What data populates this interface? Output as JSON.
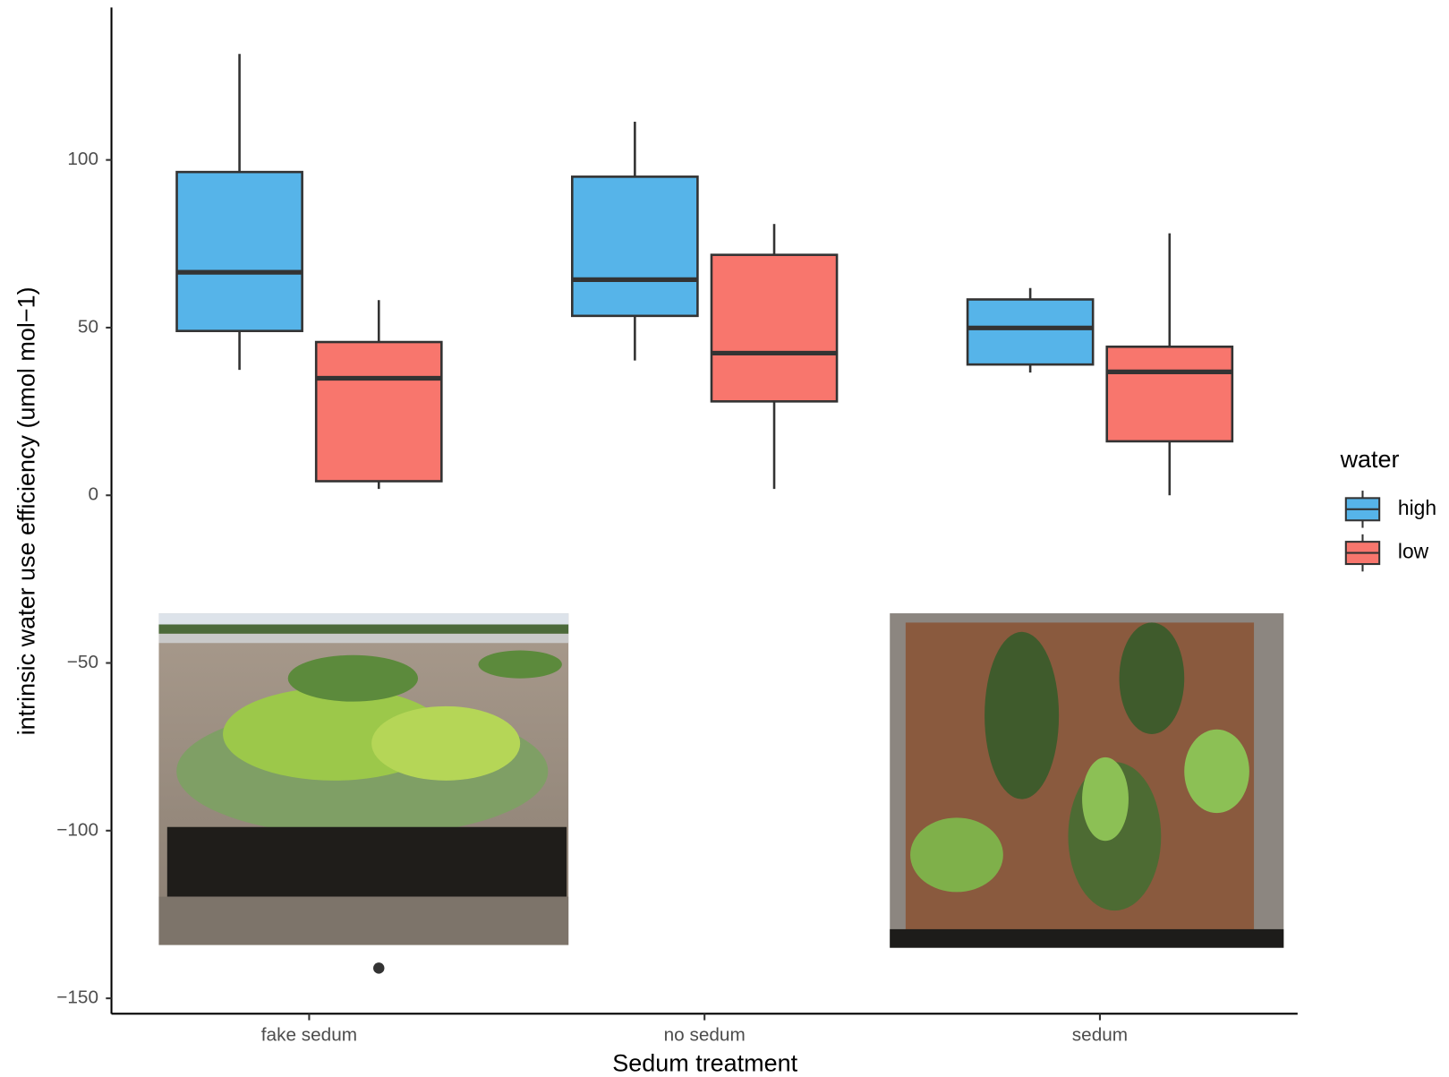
{
  "chart_data": {
    "type": "boxplot",
    "xlabel": "Sedum treatment",
    "ylabel": "intrinsic water use efficiency (umol mol−1)",
    "categories": [
      "fake sedum",
      "no sedum",
      "sedum"
    ],
    "legend_title": "water",
    "legend_position": "right",
    "ylim": [
      -154.6,
      144.9
    ],
    "yticks": [
      {
        "value": -150,
        "label": "−150"
      },
      {
        "value": -100,
        "label": "−100"
      },
      {
        "value": -50,
        "label": "−50"
      },
      0,
      50,
      100
    ],
    "series": [
      {
        "name": "high",
        "color": "#56b4e9",
        "whisker_low": [
          37.4,
          40.2,
          36.6
        ],
        "q1": [
          49,
          53.5,
          39
        ],
        "median": [
          66.5,
          64.3,
          49.9
        ],
        "q3": [
          96.4,
          95,
          58.4
        ],
        "whisker_high": [
          131.6,
          111.4,
          61.8
        ],
        "outliers": [
          [],
          [],
          []
        ]
      },
      {
        "name": "low",
        "color": "#f8766d",
        "whisker_low": [
          1.9,
          1.9,
          0
        ],
        "q1": [
          4.2,
          28,
          16.1
        ],
        "median": [
          34.9,
          42.4,
          36.8
        ],
        "q3": [
          45.7,
          71.7,
          44.3
        ],
        "whisker_high": [
          58.2,
          80.9,
          78.1
        ],
        "outliers": [
          [
            -141
          ],
          [],
          []
        ]
      }
    ]
  }
}
